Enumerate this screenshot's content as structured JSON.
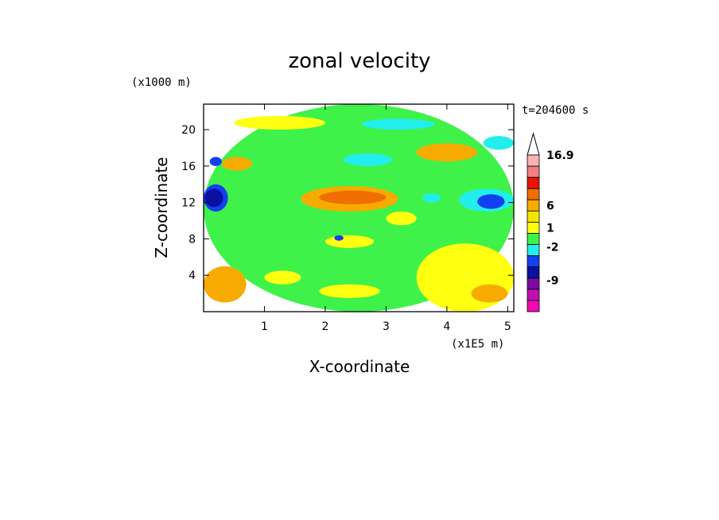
{
  "chart_data": {
    "type": "heatmap",
    "title": "zonal velocity",
    "xlabel": "X-coordinate",
    "ylabel": "Z-coordinate",
    "x_unit": "(x1E5 m)",
    "y_unit": "(x1000 m)",
    "time_label": "t=204600 s",
    "xlim": [
      0,
      5.1
    ],
    "ylim": [
      0,
      22.8
    ],
    "x_ticks": [
      "1",
      "2",
      "3",
      "4",
      "5"
    ],
    "x_tick_values": [
      1,
      2,
      3,
      4,
      5
    ],
    "y_ticks": [
      "4",
      "8",
      "12",
      "16",
      "20"
    ],
    "y_tick_values": [
      4,
      8,
      12,
      16,
      20
    ],
    "colorbar": {
      "labels": [
        "16.9",
        "6",
        "1",
        "-2",
        "-9"
      ],
      "bins": [
        {
          "color": "#f7b3b3"
        },
        {
          "color": "#f08080"
        },
        {
          "color": "#e8140c"
        },
        {
          "color": "#f06e00"
        },
        {
          "color": "#f7ab00"
        },
        {
          "color": "#f2e600"
        },
        {
          "color": "#ffff10"
        },
        {
          "color": "#3ef24a"
        },
        {
          "color": "#22eeee"
        },
        {
          "color": "#1240f0"
        },
        {
          "color": "#0a10a0"
        },
        {
          "color": "#7a0aa0"
        },
        {
          "color": "#c010b0"
        },
        {
          "color": "#f00ab0"
        }
      ],
      "extend_max": true
    },
    "field_regions": [
      {
        "x": 0.0,
        "z": 0.0,
        "w": 5.1,
        "h": 22.8,
        "color": "#3ef24a"
      },
      {
        "x": 3.5,
        "z": 0.0,
        "w": 1.6,
        "h": 7.5,
        "color": "#ffff10"
      },
      {
        "x": 0.0,
        "z": 1.0,
        "w": 0.7,
        "h": 4.0,
        "color": "#f7ab00"
      },
      {
        "x": 1.6,
        "z": 11.0,
        "w": 1.6,
        "h": 2.8,
        "color": "#f7ab00"
      },
      {
        "x": 1.9,
        "z": 11.8,
        "w": 1.1,
        "h": 1.5,
        "color": "#f06e00"
      },
      {
        "x": 0.0,
        "z": 11.0,
        "w": 0.4,
        "h": 3.0,
        "color": "#1240f0"
      },
      {
        "x": 0.02,
        "z": 11.5,
        "w": 0.3,
        "h": 2.0,
        "color": "#0a10a0"
      },
      {
        "x": 4.2,
        "z": 11.0,
        "w": 0.9,
        "h": 2.5,
        "color": "#22eeee"
      },
      {
        "x": 4.5,
        "z": 11.3,
        "w": 0.45,
        "h": 1.6,
        "color": "#1240f0"
      },
      {
        "x": 2.3,
        "z": 16.0,
        "w": 0.8,
        "h": 1.4,
        "color": "#22eeee"
      },
      {
        "x": 3.5,
        "z": 16.5,
        "w": 1.0,
        "h": 2.0,
        "color": "#f7ab00"
      },
      {
        "x": 4.6,
        "z": 17.8,
        "w": 0.5,
        "h": 1.5,
        "color": "#22eeee"
      },
      {
        "x": 0.3,
        "z": 15.5,
        "w": 0.5,
        "h": 1.5,
        "color": "#f7ab00"
      },
      {
        "x": 2.0,
        "z": 7.0,
        "w": 0.8,
        "h": 1.4,
        "color": "#ffff10"
      },
      {
        "x": 3.0,
        "z": 9.5,
        "w": 0.5,
        "h": 1.5,
        "color": "#ffff10"
      },
      {
        "x": 0.5,
        "z": 20.0,
        "w": 1.5,
        "h": 1.5,
        "color": "#ffff10"
      },
      {
        "x": 0.1,
        "z": 16.0,
        "w": 0.2,
        "h": 1.0,
        "color": "#1240f0"
      },
      {
        "x": 2.15,
        "z": 7.8,
        "w": 0.15,
        "h": 0.6,
        "color": "#1240f0"
      },
      {
        "x": 3.6,
        "z": 12.0,
        "w": 0.3,
        "h": 1.0,
        "color": "#22eeee"
      },
      {
        "x": 2.6,
        "z": 20.0,
        "w": 1.2,
        "h": 1.2,
        "color": "#22eeee"
      },
      {
        "x": 1.0,
        "z": 3.0,
        "w": 0.6,
        "h": 1.5,
        "color": "#ffff10"
      },
      {
        "x": 1.9,
        "z": 1.5,
        "w": 1.0,
        "h": 1.5,
        "color": "#ffff10"
      },
      {
        "x": 4.4,
        "z": 1.0,
        "w": 0.6,
        "h": 2.0,
        "color": "#f7ab00"
      }
    ]
  }
}
